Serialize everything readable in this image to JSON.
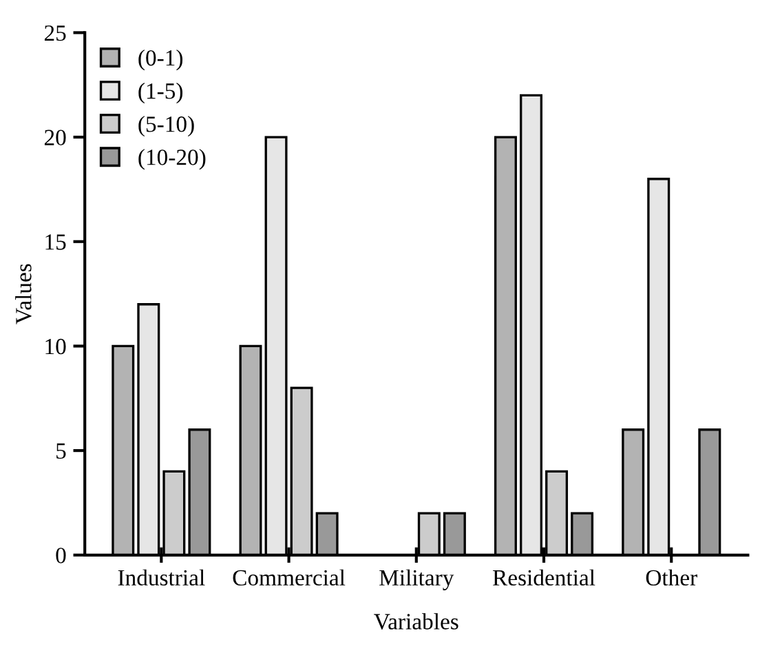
{
  "chart_data": {
    "type": "bar",
    "xlabel": "Variables",
    "ylabel": "Values",
    "categories": [
      "Industrial",
      "Commercial",
      "Military",
      "Residential",
      "Other"
    ],
    "series": [
      {
        "name": "(0-1)",
        "color": "#b3b3b3",
        "values": [
          10,
          10,
          null,
          20,
          6
        ]
      },
      {
        "name": "(1-5)",
        "color": "#e6e6e6",
        "values": [
          12,
          20,
          null,
          22,
          18
        ]
      },
      {
        "name": "(5-10)",
        "color": "#cccccc",
        "values": [
          4,
          8,
          2,
          4,
          null
        ]
      },
      {
        "name": "(10-20)",
        "color": "#999999",
        "values": [
          6,
          2,
          2,
          2,
          6
        ]
      }
    ],
    "ylim": [
      0,
      25
    ],
    "yticks": [
      0,
      5,
      10,
      15,
      20,
      25
    ],
    "grid": false,
    "legend": "top left"
  }
}
